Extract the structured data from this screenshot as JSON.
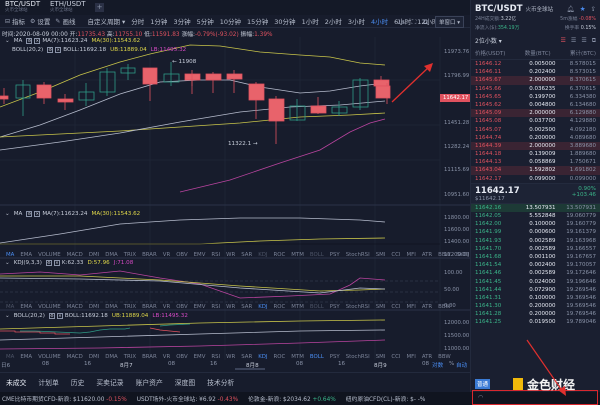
{
  "pair_tabs": [
    {
      "name": "BTC/USDT",
      "exchange": "火币全球站",
      "active": true
    },
    {
      "name": "ETH/USDT",
      "exchange": "火币全球站",
      "active": false
    }
  ],
  "toolbar": {
    "indicator_label": "指标",
    "settings_label": "设置",
    "draw_label": "画线",
    "custom_period_label": "自定义周期 ▾",
    "periods": [
      "分时",
      "1分钟",
      "3分钟",
      "5分钟",
      "10分钟",
      "15分钟",
      "30分钟",
      "1小时",
      "2小时",
      "3小时",
      "4小时",
      "6小时",
      "12小时",
      "1日"
    ],
    "active_period": "4小时",
    "right_label_1s": "1s",
    "single_window": "单窗口 ▾"
  },
  "info": {
    "time": "时间:2020-08-09 00:00",
    "open_label": "开:",
    "open": "11735.43",
    "high_label": "高:",
    "high": "11755.10",
    "low_label": "低:",
    "low": "11591.83",
    "close_label": "收:",
    "close": "11642.17",
    "change_label": "涨幅:",
    "change": "-0.79%(-93.02)",
    "amplitude_label": "振幅:",
    "amplitude": "1.39%"
  },
  "main_indicators": {
    "ma_label": "MA",
    "ma7": "MA(7):11623.24",
    "ma30": "MA(30):11543.62",
    "boll_label": "BOLL(20,2)",
    "boll": "BOLL:11692.18",
    "ub": "UB:11889.04",
    "lb": "LB:11495.32"
  },
  "annotations": {
    "high": "← 11908",
    "low": "11322.1 →"
  },
  "price_axis": [
    "11973.76",
    "11796.99",
    "11451.28",
    "11282.24",
    "11115.69",
    "10951.60"
  ],
  "current_price_tag": "11642.17",
  "sub1": {
    "label": "MA",
    "ma7": "MA(7):11623.24",
    "ma30": "MA(30):11543.62",
    "axis": [
      "11800.00",
      "11600.00",
      "11400.00",
      "11200.00"
    ]
  },
  "indicator_tabs_1": [
    "MA",
    "EMA",
    "VOLUME",
    "MACD",
    "DMI",
    "DMA",
    "TRIX",
    "BRAR",
    "VR",
    "OBV",
    "EMV",
    "RSI",
    "WR",
    "SAR",
    "KDJ",
    "ROC",
    "MTM",
    "BOLL",
    "PSY",
    "StochRSI",
    "SMI",
    "CCI",
    "MFI",
    "ATR",
    "BBW",
    "SKDJ",
    "BIAS"
  ],
  "sub2": {
    "label": "KDJ(9,3,3)",
    "k": "K:62.33",
    "d": "D:57.96",
    "j": "J:71.08",
    "axis": [
      "100.00",
      "50.00",
      "0.00"
    ]
  },
  "indicator_tabs_2": [
    "MA",
    "EMA",
    "VOLUME",
    "MACD",
    "DMI",
    "DMA",
    "TRIX",
    "BRAR",
    "VR",
    "OBV",
    "EMV",
    "RSI",
    "WR",
    "SAR",
    "KDJ",
    "ROC",
    "MTM",
    "BOLL",
    "PSY",
    "StochRSI",
    "SMI",
    "CCI",
    "MFI",
    "ATR",
    "BBW"
  ],
  "sub3": {
    "label": "BOLL(20,2)",
    "boll": "BOLL:11692.18",
    "ub": "UB:11889.04",
    "lb": "LB:11495.32",
    "axis": [
      "12000.00",
      "11500.00",
      "11000.00"
    ]
  },
  "indicator_tabs_3": [
    "MA",
    "EMA",
    "VOLUME",
    "MACD",
    "DMI",
    "DMA",
    "TRIX",
    "BRAR",
    "VR",
    "OBV",
    "EMV",
    "RSI",
    "WR",
    "SAR",
    "KDJ",
    "ROC",
    "MTM",
    "BOLL",
    "PSY",
    "StochRSI",
    "SMI",
    "CCI",
    "MFI",
    "ATR",
    "BBW"
  ],
  "time_axis": {
    "labels": [
      "日6",
      "08",
      "16",
      "8月7",
      "08",
      "16",
      "8月8",
      "08",
      "16",
      "8月9",
      "08"
    ],
    "log_label": "对数",
    "pct_label": "%",
    "auto_label": "自动"
  },
  "bottom_tabs": [
    "未成交",
    "计划单",
    "历史",
    "买卖记录",
    "账户资产",
    "深度图",
    "技术分析"
  ],
  "ticker": [
    {
      "label": "CME比特币期货CFD-新浪:",
      "value": "$11620.00",
      "change": "-0.15%",
      "dir": "down"
    },
    {
      "label": "USDT场外-火币全球站:",
      "value": "¥6.92",
      "change": "-0.43%",
      "dir": "down"
    },
    {
      "label": "伦敦金-新浪:",
      "value": "$2034.62",
      "change": "+0.64%",
      "dir": "up"
    },
    {
      "label": "纽约原油CFD(CL)-新浪:",
      "value": "$- -%",
      "change": "",
      "dir": "none"
    }
  ],
  "right_panel": {
    "pair": "BTC/USDT",
    "exchange": "火币全球站",
    "vol_label": "24H成交额:",
    "vol": "3.22亿",
    "inflow_label": "净流入($):",
    "inflow": "354.19万",
    "change_label": "5m涨幅",
    "change": "-0.08%",
    "fee_label": "换手率",
    "fee": "0.15%",
    "depth": "2位小数 ▾",
    "head_price": "价格(USDT)",
    "head_amount": "数量(BTC)",
    "head_total": "累计(BTC)",
    "asks": [
      {
        "p": "11646.12",
        "a": "0.005000",
        "t": "8.578015",
        "hl": false
      },
      {
        "p": "11646.11",
        "a": "0.202400",
        "t": "8.573015",
        "hl": false
      },
      {
        "p": "11645.67",
        "a": "2.000000",
        "t": "8.370615",
        "hl": true
      },
      {
        "p": "11645.66",
        "a": "0.036235",
        "t": "6.370615",
        "hl": false
      },
      {
        "p": "11645.65",
        "a": "0.199700",
        "t": "6.334380",
        "hl": false
      },
      {
        "p": "11645.62",
        "a": "0.004800",
        "t": "6.134680",
        "hl": false
      },
      {
        "p": "11645.09",
        "a": "2.000000",
        "t": "6.129880",
        "hl": true
      },
      {
        "p": "11645.08",
        "a": "0.037700",
        "t": "4.129880",
        "hl": false
      },
      {
        "p": "11645.07",
        "a": "0.002500",
        "t": "4.092180",
        "hl": false
      },
      {
        "p": "11644.74",
        "a": "0.200000",
        "t": "4.089680",
        "hl": false
      },
      {
        "p": "11644.39",
        "a": "2.000000",
        "t": "3.889680",
        "hl": true
      },
      {
        "p": "11644.18",
        "a": "0.139009",
        "t": "1.889680",
        "hl": false
      },
      {
        "p": "11644.13",
        "a": "0.058869",
        "t": "1.750671",
        "hl": false
      },
      {
        "p": "11643.04",
        "a": "1.592802",
        "t": "1.691802",
        "hl": true
      },
      {
        "p": "11642.17",
        "a": "0.099000",
        "t": "0.099000",
        "hl": false
      }
    ],
    "last_price": "11642.17",
    "last_usd": "$11642.17",
    "last_pct": "0.90%",
    "last_change": "+103.46",
    "bids": [
      {
        "p": "11642.16",
        "a": "13.507931",
        "t": "13.507931",
        "hl": true
      },
      {
        "p": "11642.05",
        "a": "5.552848",
        "t": "19.060779",
        "hl": false
      },
      {
        "p": "11642.00",
        "a": "0.100000",
        "t": "19.160779",
        "hl": false
      },
      {
        "p": "11641.99",
        "a": "0.000600",
        "t": "19.161379",
        "hl": false
      },
      {
        "p": "11641.93",
        "a": "0.002589",
        "t": "19.163968",
        "hl": false
      },
      {
        "p": "11641.70",
        "a": "0.002589",
        "t": "19.166557",
        "hl": false
      },
      {
        "p": "11641.68",
        "a": "0.001100",
        "t": "19.167657",
        "hl": false
      },
      {
        "p": "11641.54",
        "a": "0.002400",
        "t": "19.170057",
        "hl": false
      },
      {
        "p": "11641.46",
        "a": "0.002589",
        "t": "19.172646",
        "hl": false
      },
      {
        "p": "11641.45",
        "a": "0.024000",
        "t": "19.196646",
        "hl": false
      },
      {
        "p": "11641.44",
        "a": "0.072900",
        "t": "19.269546",
        "hl": false
      },
      {
        "p": "11641.31",
        "a": "0.100000",
        "t": "19.369546",
        "hl": false
      },
      {
        "p": "11641.30",
        "a": "0.200000",
        "t": "19.569546",
        "hl": false
      },
      {
        "p": "11641.28",
        "a": "0.200000",
        "t": "19.769546",
        "hl": false
      },
      {
        "p": "11641.25",
        "a": "0.019500",
        "t": "19.789046",
        "hl": false
      }
    ],
    "bottom_badge": "普通",
    "watermark": "金色财经"
  },
  "colors": {
    "up": "#3bb58a",
    "down": "#e0525f",
    "accent": "#4a8cf0",
    "ma30": "#e0d84a",
    "lb": "#d54ac4"
  }
}
